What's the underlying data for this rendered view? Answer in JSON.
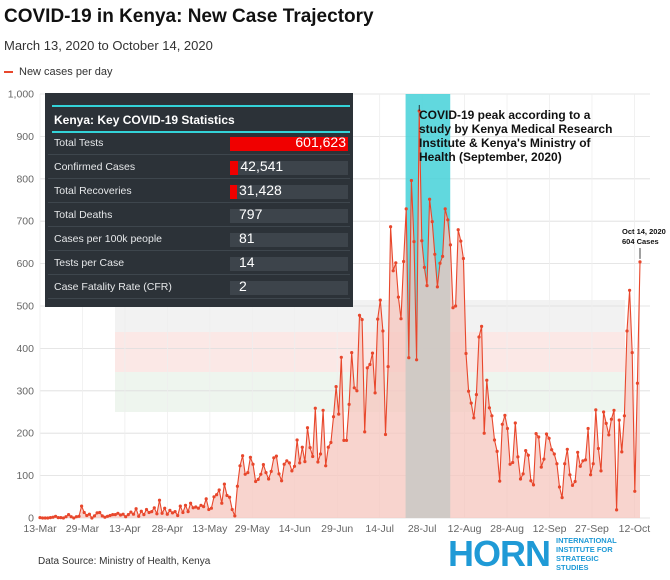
{
  "header": {
    "title": "COVID-19 in Kenya: New Case Trajectory",
    "subtitle": "March 13, 2020 to October 14, 2020",
    "legend_label": "New cases per day"
  },
  "colors": {
    "series": "#e8472c",
    "area": "#f6c5bd",
    "peak_band": "#45d1d8",
    "panel": "#2c3238",
    "panel_rule": "#33d3d8",
    "stat_bar": "#f00000",
    "logo": "#1f9ad6"
  },
  "stats_panel": {
    "title": "Kenya: Key COVID-19 Statistics",
    "rows": [
      {
        "label": "Total Tests",
        "value": "601,623",
        "fraction": 1.0
      },
      {
        "label": "Confirmed Cases",
        "value": "42,541",
        "fraction": 0.071
      },
      {
        "label": "Total Recoveries",
        "value": "31,428",
        "fraction": 0.052
      },
      {
        "label": "Total Deaths",
        "value": "797",
        "fraction": 0
      },
      {
        "label": "Cases per 100k people",
        "value": "81",
        "fraction": 0
      },
      {
        "label": "Tests per Case",
        "value": "14",
        "fraction": 0
      },
      {
        "label": "Case Fatality Rate (CFR)",
        "value": "2",
        "fraction": 0
      }
    ]
  },
  "annotations": {
    "peak_note": "COVID-19 peak according to a study by Kenya Medical Research Institute & Kenya's Ministry of Health (September, 2020)",
    "end_date": "Oct 14, 2020",
    "end_value": "604 Cases"
  },
  "footer": {
    "source": "Data Source: Ministry of Health, Kenya",
    "logo_word": "HORN",
    "logo_line1": "INTERNATIONAL",
    "logo_line2": "INSTITUTE FOR",
    "logo_line3": "STRATEGIC",
    "logo_line4": "STUDIES"
  },
  "chart_data": {
    "type": "line",
    "x_range": [
      "2020-03-13",
      "2020-10-14"
    ],
    "ylim": [
      0,
      1000
    ],
    "yticks": [
      "0",
      "100",
      "200",
      "300",
      "400",
      "500",
      "600",
      "700",
      "800",
      "900",
      "1,000"
    ],
    "xticks": [
      "13-Mar",
      "29-Mar",
      "13-Apr",
      "28-Apr",
      "13-May",
      "29-May",
      "14-Jun",
      "29-Jun",
      "14-Jul",
      "28-Jul",
      "12-Aug",
      "28-Aug",
      "12-Sep",
      "27-Sep",
      "12-Oct"
    ],
    "grid": true,
    "legend_position": "top-left",
    "peak_band": [
      "2020-07-22",
      "2020-08-07"
    ],
    "series": [
      {
        "name": "New cases per day",
        "values": [
          1,
          0,
          0,
          0,
          1,
          2,
          4,
          1,
          1,
          0,
          3,
          8,
          3,
          0,
          3,
          4,
          28,
          13,
          6,
          9,
          0,
          5,
          12,
          13,
          5,
          2,
          4,
          6,
          8,
          8,
          11,
          7,
          9,
          3,
          8,
          14,
          9,
          22,
          4,
          16,
          8,
          20,
          13,
          15,
          24,
          10,
          42,
          11,
          23,
          9,
          18,
          12,
          15,
          6,
          28,
          13,
          30,
          15,
          35,
          24,
          26,
          23,
          30,
          27,
          45,
          20,
          23,
          50,
          55,
          66,
          35,
          80,
          53,
          49,
          20,
          5,
          75,
          123,
          147,
          103,
          107,
          143,
          127,
          86,
          91,
          103,
          126,
          107,
          92,
          110,
          142,
          146,
          104,
          88,
          127,
          135,
          130,
          111,
          122,
          184,
          130,
          167,
          133,
          213,
          166,
          145,
          259,
          132,
          151,
          254,
          123,
          167,
          178,
          239,
          310,
          245,
          379,
          183,
          183,
          268,
          390,
          307,
          300,
          478,
          468,
          203,
          354,
          362,
          389,
          295,
          469,
          514,
          441,
          197,
          357,
          687,
          583,
          602,
          521,
          470,
          605,
          729,
          378,
          796,
          652,
          373,
          960,
          654,
          591,
          548,
          752,
          699,
          622,
          545,
          601,
          617,
          729,
          703,
          644,
          496,
          500,
          680,
          653,
          612,
          388,
          299,
          271,
          236,
          291,
          427,
          452,
          200,
          325,
          260,
          241,
          184,
          157,
          87,
          221,
          242,
          211,
          127,
          131,
          224,
          144,
          92,
          104,
          159,
          148,
          88,
          78,
          199,
          191,
          120,
          139,
          198,
          188,
          161,
          151,
          128,
          73,
          48,
          128,
          162,
          102,
          77,
          86,
          155,
          122,
          135,
          137,
          211,
          102,
          128,
          255,
          164,
          111,
          250,
          223,
          196,
          233,
          254,
          19,
          231,
          156,
          241,
          441,
          537,
          390,
          63,
          318,
          604
        ]
      }
    ]
  }
}
